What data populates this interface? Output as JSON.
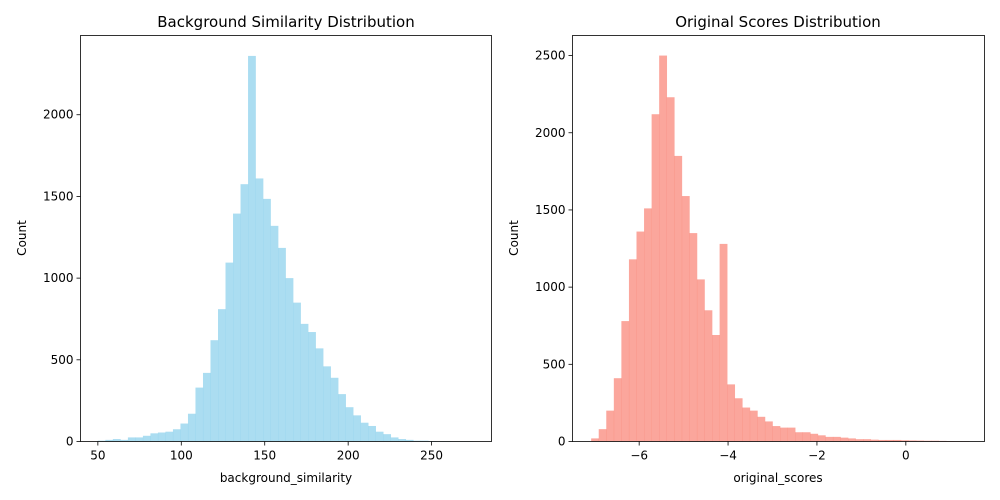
{
  "chart_data": [
    {
      "type": "bar",
      "title": "Background Similarity Distribution",
      "xlabel": "background_similarity",
      "ylabel": "Count",
      "color": "#87CEEB",
      "opacity": 0.7,
      "xlim": [
        39.6,
        285.9
      ],
      "ylim": [
        0,
        2485
      ],
      "xticks": [
        50,
        100,
        150,
        200,
        250
      ],
      "yticks": [
        0,
        500,
        1000,
        1500,
        2000
      ],
      "bin_start": 50,
      "bin_width": 4.5,
      "values": [
        5,
        10,
        15,
        10,
        25,
        25,
        35,
        50,
        55,
        60,
        75,
        110,
        170,
        330,
        420,
        620,
        810,
        1095,
        1395,
        1575,
        2360,
        1610,
        1485,
        1320,
        1185,
        1000,
        850,
        720,
        670,
        570,
        460,
        390,
        290,
        210,
        160,
        115,
        95,
        60,
        45,
        25,
        15,
        10,
        5,
        5,
        3,
        2,
        2,
        1,
        1,
        1
      ]
    },
    {
      "type": "bar",
      "title": "Original Scores Distribution",
      "xlabel": "original_scores",
      "ylabel": "Count",
      "color": "#FA8072",
      "opacity": 0.7,
      "xlim": [
        -7.5,
        1.77
      ],
      "ylim": [
        0,
        2630
      ],
      "xticks": [
        -6,
        -4,
        -2,
        0
      ],
      "yticks": [
        0,
        500,
        1000,
        1500,
        2000,
        2500
      ],
      "bin_start": -7.08,
      "bin_width": 0.17,
      "values": [
        20,
        80,
        200,
        410,
        780,
        1180,
        1360,
        1510,
        2120,
        2500,
        2230,
        1850,
        1590,
        1350,
        1050,
        850,
        690,
        1280,
        370,
        280,
        220,
        200,
        160,
        130,
        100,
        90,
        90,
        60,
        60,
        50,
        40,
        30,
        30,
        25,
        20,
        15,
        15,
        12,
        10,
        10,
        10,
        8,
        7,
        6,
        5,
        5,
        4,
        3,
        2,
        2
      ]
    }
  ]
}
